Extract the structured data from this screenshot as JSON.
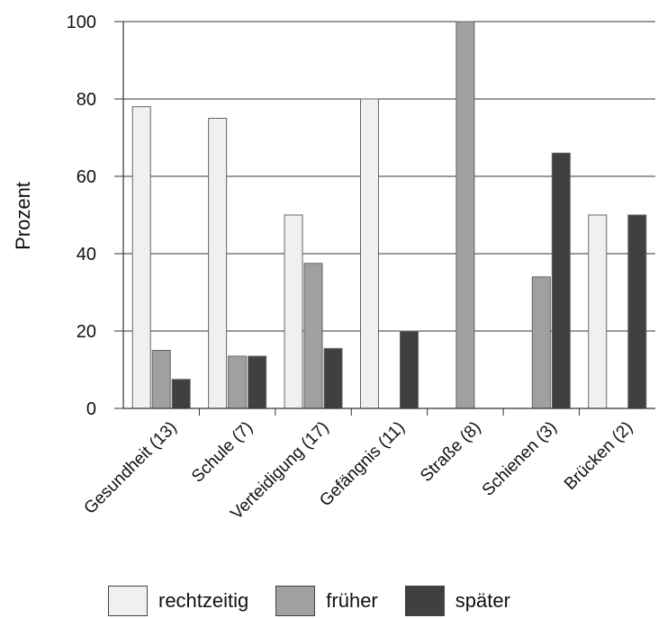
{
  "chart_data": {
    "type": "bar",
    "ylabel": "Prozent",
    "xlabel": "",
    "ylim": [
      0,
      100
    ],
    "yticks": [
      "0",
      "20",
      "40",
      "60",
      "80",
      "100"
    ],
    "grid": true,
    "legend_position": "bottom",
    "categories": [
      "Gesundheit (13)",
      "Schule (7)",
      "Verteidigung (17)",
      "Gefängnis (11)",
      "Straße (8)",
      "Schienen (3)",
      "Brücken (2)"
    ],
    "series": [
      {
        "name": "rechtzeitig",
        "color": "#f0f0f0",
        "values": [
          78,
          75,
          50,
          80,
          0,
          0,
          50
        ]
      },
      {
        "name": "früher",
        "color": "#a0a0a0",
        "values": [
          15,
          13.5,
          37.5,
          0,
          100,
          34,
          0
        ]
      },
      {
        "name": "später",
        "color": "#404040",
        "values": [
          7.5,
          13.5,
          15.5,
          20,
          0,
          66,
          50
        ]
      }
    ]
  }
}
